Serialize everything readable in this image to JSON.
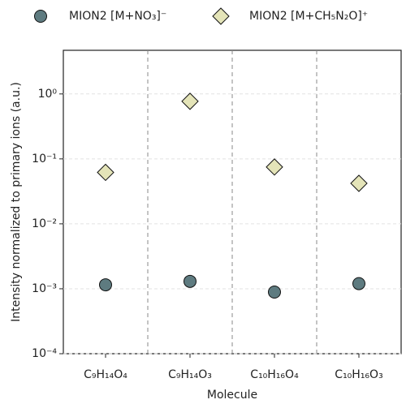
{
  "chart_data": {
    "type": "scatter",
    "x_label": "Molecule",
    "y_label": "Intensity normalized to primary ions (a.u.)",
    "categories": [
      "C₉H₁₄O₄",
      "C₉H₁₄O₃",
      "C₁₀H₁₆O₄",
      "C₁₀H₁₆O₃"
    ],
    "series": [
      {
        "name": "MION2 [M+NO₃]⁻",
        "color": "#5e7b80",
        "marker": "circle",
        "values": [
          0.00115,
          0.0013,
          0.00089,
          0.0012
        ]
      },
      {
        "name": "MION2 [M+CH₅N₂O]⁺",
        "color": "#e4e4b8",
        "marker": "diamond",
        "values": [
          0.062,
          0.77,
          0.075,
          0.042
        ]
      }
    ],
    "log_y": true,
    "ylim": [
      0.0001,
      4.7
    ],
    "yticks": [
      {
        "value": 0.0001,
        "label": "10⁻⁴"
      },
      {
        "value": 0.001,
        "label": "10⁻³"
      },
      {
        "value": 0.01,
        "label": "10⁻²"
      },
      {
        "value": 0.1,
        "label": "10⁻¹"
      },
      {
        "value": 1,
        "label": "10⁰"
      }
    ],
    "grid": true,
    "legend": "top"
  }
}
